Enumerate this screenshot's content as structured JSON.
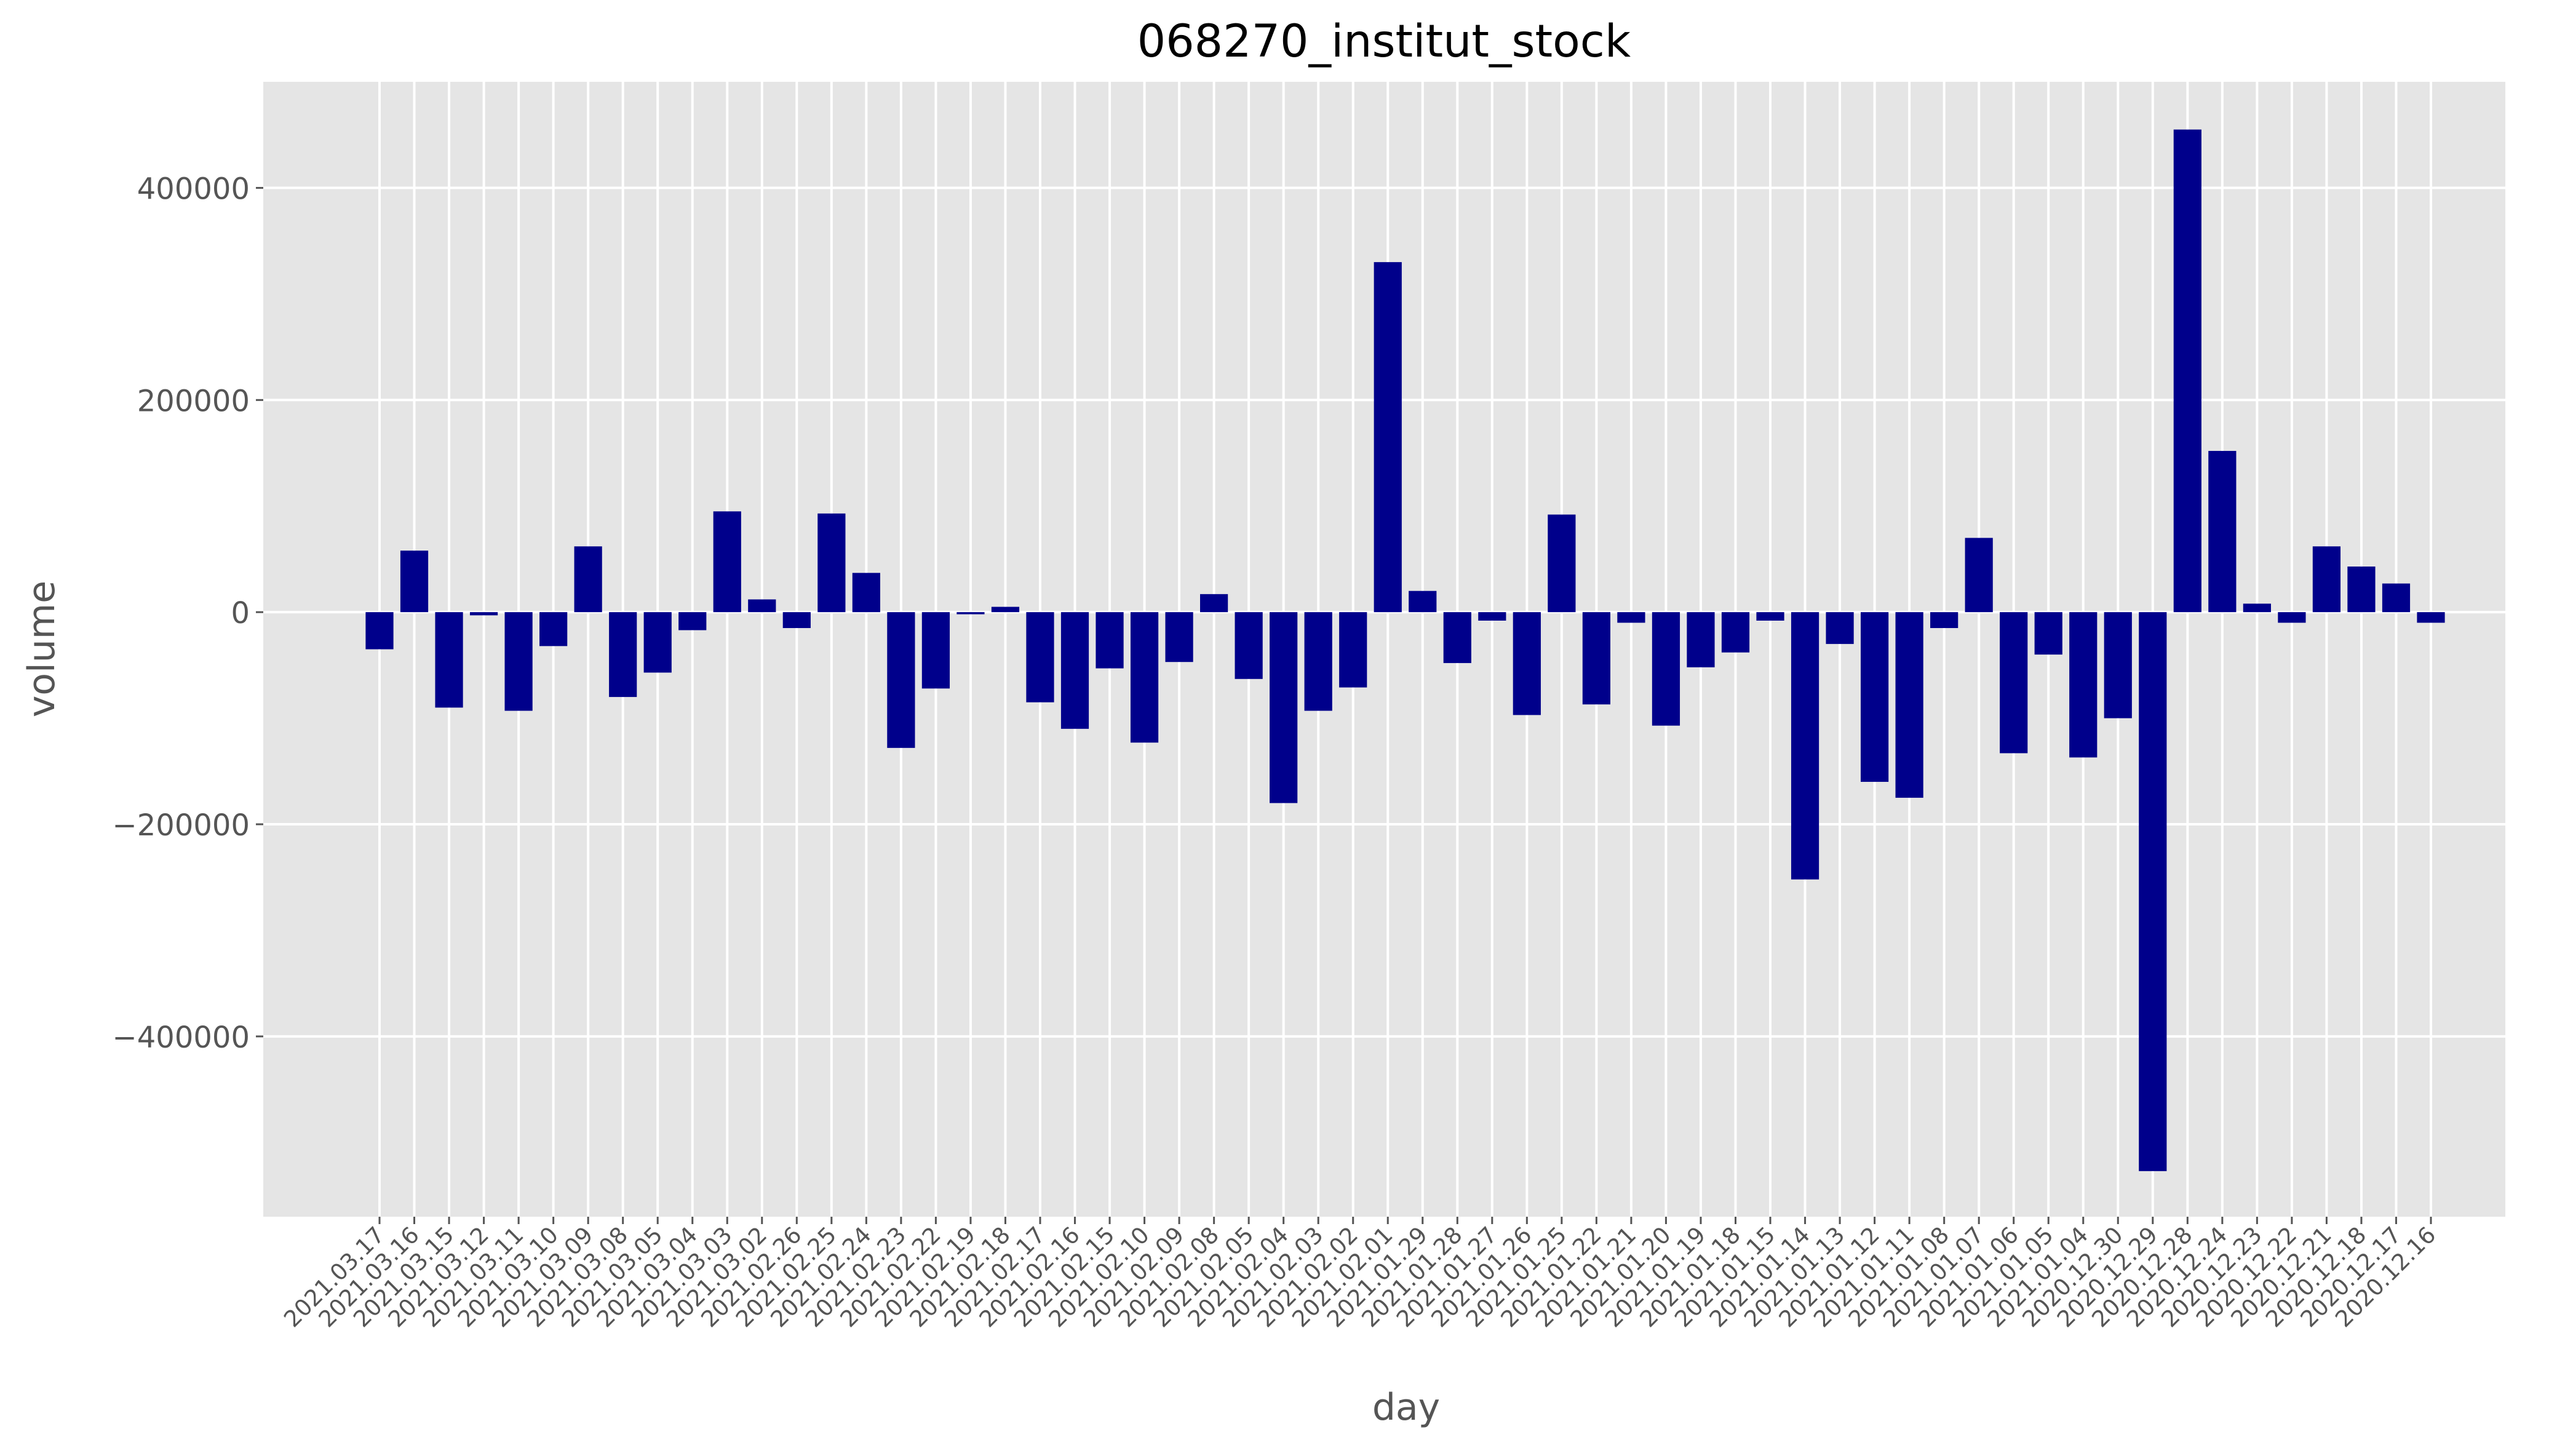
{
  "chart_data": {
    "type": "bar",
    "title": "068270_institut_stock",
    "xlabel": "day",
    "ylabel": "volume",
    "ylim": [
      -570000,
      500000
    ],
    "yticks": [
      -400000,
      -200000,
      0,
      200000,
      400000
    ],
    "ytick_labels": [
      "−400000",
      "−200000",
      "0",
      "200000",
      "400000"
    ],
    "grid": true,
    "legend": "none",
    "bar_color": "#00008b",
    "background_color": "#e5e5e5",
    "grid_color": "#ffffff",
    "categories": [
      "2021.03.17",
      "2021.03.16",
      "2021.03.15",
      "2021.03.12",
      "2021.03.11",
      "2021.03.10",
      "2021.03.09",
      "2021.03.08",
      "2021.03.05",
      "2021.03.04",
      "2021.03.03",
      "2021.03.02",
      "2021.02.26",
      "2021.02.25",
      "2021.02.24",
      "2021.02.23",
      "2021.02.22",
      "2021.02.19",
      "2021.02.18",
      "2021.02.17",
      "2021.02.16",
      "2021.02.15",
      "2021.02.10",
      "2021.02.09",
      "2021.02.08",
      "2021.02.05",
      "2021.02.04",
      "2021.02.03",
      "2021.02.02",
      "2021.02.01",
      "2021.01.29",
      "2021.01.28",
      "2021.01.27",
      "2021.01.26",
      "2021.01.25",
      "2021.01.22",
      "2021.01.21",
      "2021.01.20",
      "2021.01.19",
      "2021.01.18",
      "2021.01.15",
      "2021.01.14",
      "2021.01.13",
      "2021.01.12",
      "2021.01.11",
      "2021.01.08",
      "2021.01.07",
      "2021.01.06",
      "2021.01.05",
      "2021.01.04",
      "2020.12.30",
      "2020.12.29",
      "2020.12.28",
      "2020.12.24",
      "2020.12.23",
      "2020.12.22",
      "2020.12.21",
      "2020.12.18",
      "2020.12.17",
      "2020.12.16"
    ],
    "values": [
      -35000,
      58000,
      -90000,
      -3000,
      -93000,
      -32000,
      62000,
      -80000,
      -57000,
      -17000,
      95000,
      12000,
      -15000,
      93000,
      37000,
      -128000,
      -72000,
      -2000,
      5000,
      -85000,
      -110000,
      -53000,
      -123000,
      -47000,
      17000,
      -63000,
      -180000,
      -93000,
      -71000,
      330000,
      20000,
      -48000,
      -8000,
      -97000,
      92000,
      -87000,
      -10000,
      -107000,
      -52000,
      -38000,
      -8000,
      -252000,
      -30000,
      -160000,
      -175000,
      -15000,
      70000,
      -133000,
      -40000,
      -137000,
      -100000,
      -527000,
      455000,
      152000,
      8000,
      -10000,
      62000,
      43000,
      27000,
      -10000
    ]
  }
}
